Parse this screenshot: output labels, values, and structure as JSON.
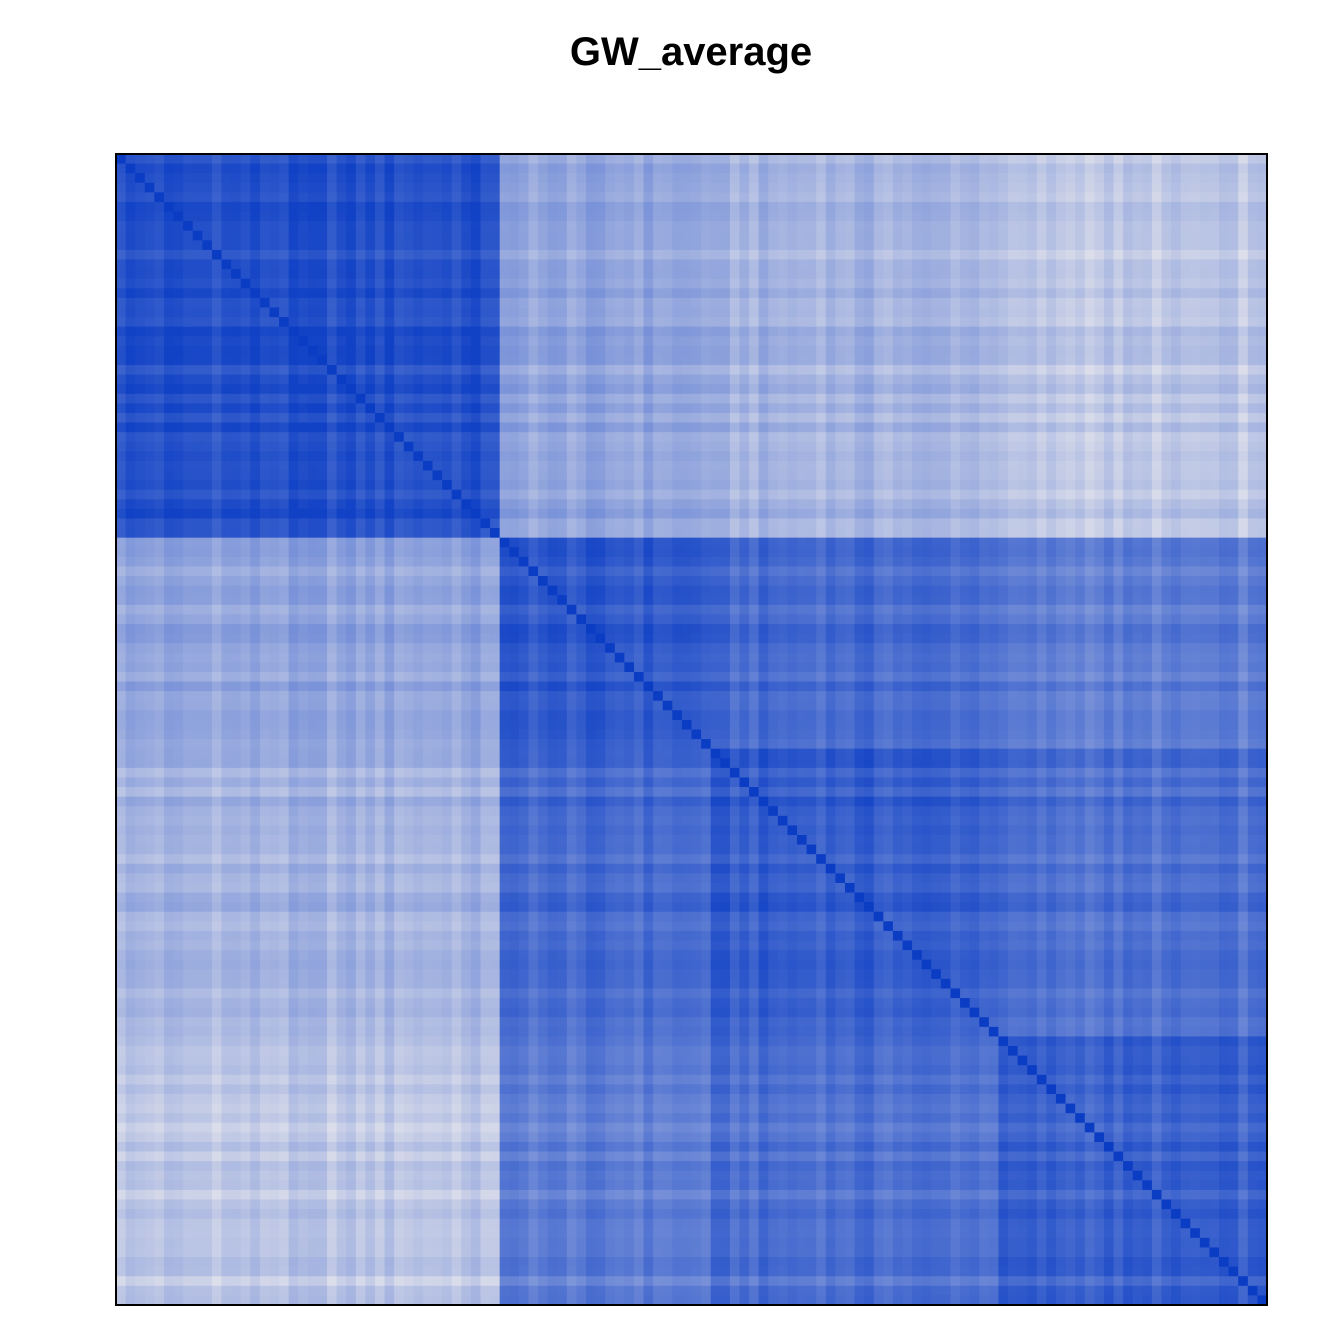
{
  "chart_data": {
    "type": "heatmap",
    "title": "GW_average",
    "xlabel": "",
    "ylabel": "",
    "n": 120,
    "axes": "none",
    "tick_labels": "none",
    "grid": false,
    "legend": "none",
    "color_low": "#e6e6ec",
    "color_high": "#0a3cc4",
    "diagonal_value": 1.0,
    "cluster_breaks": [
      0,
      40,
      62,
      92,
      120
    ],
    "block_values": [
      [
        0.88,
        0.38,
        0.3,
        0.18
      ],
      [
        0.38,
        0.82,
        0.72,
        0.6
      ],
      [
        0.3,
        0.72,
        0.8,
        0.68
      ],
      [
        0.18,
        0.6,
        0.68,
        0.76
      ]
    ]
  }
}
